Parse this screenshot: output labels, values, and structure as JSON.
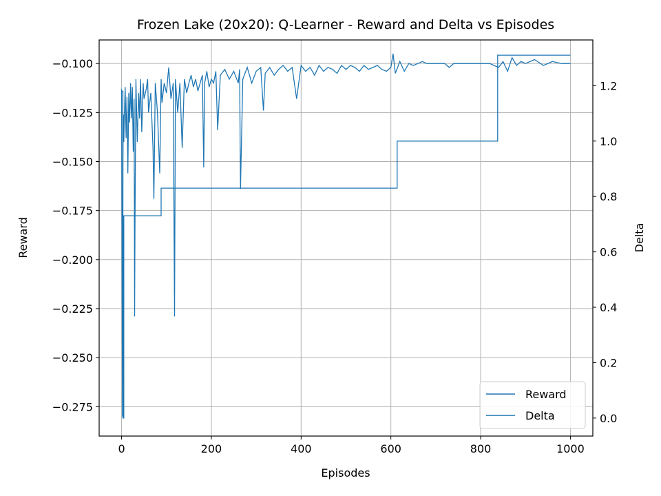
{
  "chart_data": {
    "type": "line",
    "title": "Frozen Lake (20x20): Q-Learner - Reward and Delta vs Episodes",
    "xlabel": "Episodes",
    "ylabel": "Reward",
    "y2label": "Delta",
    "xlim": [
      -50,
      1050
    ],
    "ylim": [
      -0.29,
      -0.088
    ],
    "y2lim": [
      -0.065,
      1.365
    ],
    "xticks": [
      0,
      200,
      400,
      600,
      800,
      1000
    ],
    "xtick_labels": [
      "0",
      "200",
      "400",
      "600",
      "800",
      "1000"
    ],
    "yticks": [
      -0.275,
      -0.25,
      -0.225,
      -0.2,
      -0.175,
      -0.15,
      -0.125,
      -0.1
    ],
    "ytick_labels": [
      "−0.275",
      "−0.250",
      "−0.225",
      "−0.200",
      "−0.175",
      "−0.150",
      "−0.125",
      "−0.100"
    ],
    "y2ticks": [
      0.0,
      0.2,
      0.4,
      0.6,
      0.8,
      1.0,
      1.2
    ],
    "y2tick_labels": [
      "0.0",
      "0.2",
      "0.4",
      "0.6",
      "0.8",
      "1.0",
      "1.2"
    ],
    "grid": true,
    "legend_position": "lower-right",
    "series_color": "#1f77b4",
    "series": [
      {
        "name": "Reward",
        "axis": "left",
        "x": [
          0,
          2,
          3,
          4,
          5,
          6,
          8,
          10,
          12,
          14,
          16,
          18,
          20,
          22,
          24,
          26,
          28,
          29,
          30,
          32,
          35,
          38,
          40,
          42,
          45,
          48,
          50,
          55,
          58,
          60,
          65,
          70,
          72,
          75,
          80,
          85,
          88,
          90,
          95,
          100,
          105,
          110,
          115,
          118,
          120,
          125,
          130,
          135,
          140,
          145,
          150,
          155,
          160,
          165,
          170,
          175,
          180,
          183,
          185,
          190,
          195,
          200,
          205,
          210,
          214,
          220,
          230,
          240,
          250,
          260,
          263,
          265,
          270,
          280,
          290,
          300,
          310,
          316,
          320,
          330,
          340,
          350,
          360,
          370,
          380,
          390,
          400,
          410,
          420,
          430,
          440,
          450,
          460,
          470,
          480,
          490,
          500,
          510,
          520,
          530,
          540,
          550,
          560,
          570,
          580,
          590,
          600,
          605,
          610,
          620,
          630,
          640,
          650,
          660,
          670,
          680,
          700,
          720,
          730,
          740,
          760,
          780,
          800,
          820,
          840,
          850,
          860,
          870,
          880,
          890,
          900,
          920,
          940,
          960,
          980,
          1000
        ],
        "values": [
          -0.113,
          -0.28,
          -0.15,
          -0.126,
          -0.14,
          -0.128,
          -0.112,
          -0.138,
          -0.117,
          -0.156,
          -0.115,
          -0.13,
          -0.11,
          -0.128,
          -0.112,
          -0.145,
          -0.118,
          -0.229,
          -0.18,
          -0.108,
          -0.14,
          -0.115,
          -0.128,
          -0.108,
          -0.135,
          -0.11,
          -0.118,
          -0.113,
          -0.108,
          -0.125,
          -0.115,
          -0.143,
          -0.169,
          -0.11,
          -0.125,
          -0.156,
          -0.108,
          -0.12,
          -0.11,
          -0.115,
          -0.102,
          -0.118,
          -0.11,
          -0.229,
          -0.108,
          -0.125,
          -0.11,
          -0.143,
          -0.108,
          -0.115,
          -0.11,
          -0.106,
          -0.112,
          -0.108,
          -0.114,
          -0.11,
          -0.106,
          -0.153,
          -0.11,
          -0.104,
          -0.112,
          -0.108,
          -0.11,
          -0.104,
          -0.134,
          -0.106,
          -0.103,
          -0.108,
          -0.104,
          -0.11,
          -0.103,
          -0.164,
          -0.108,
          -0.102,
          -0.11,
          -0.104,
          -0.102,
          -0.124,
          -0.105,
          -0.102,
          -0.106,
          -0.103,
          -0.101,
          -0.104,
          -0.102,
          -0.118,
          -0.101,
          -0.104,
          -0.102,
          -0.106,
          -0.101,
          -0.104,
          -0.102,
          -0.103,
          -0.105,
          -0.101,
          -0.103,
          -0.101,
          -0.102,
          -0.104,
          -0.101,
          -0.103,
          -0.102,
          -0.101,
          -0.103,
          -0.104,
          -0.102,
          -0.095,
          -0.105,
          -0.099,
          -0.104,
          -0.1,
          -0.101,
          -0.1,
          -0.099,
          -0.1,
          -0.1,
          -0.1,
          -0.102,
          -0.1,
          -0.1,
          -0.1,
          -0.1,
          -0.1,
          -0.102,
          -0.099,
          -0.104,
          -0.097,
          -0.101,
          -0.099,
          -0.1,
          -0.098,
          -0.101,
          -0.099,
          -0.1,
          -0.1
        ]
      },
      {
        "name": "Delta",
        "axis": "right",
        "x": [
          0,
          3,
          3,
          5,
          5,
          88,
          88,
          614,
          614,
          838,
          838,
          1000
        ],
        "values": [
          1.18,
          1.18,
          0.0,
          0.0,
          0.73,
          0.73,
          0.83,
          0.83,
          1.0,
          1.0,
          1.31,
          1.31
        ]
      }
    ]
  }
}
